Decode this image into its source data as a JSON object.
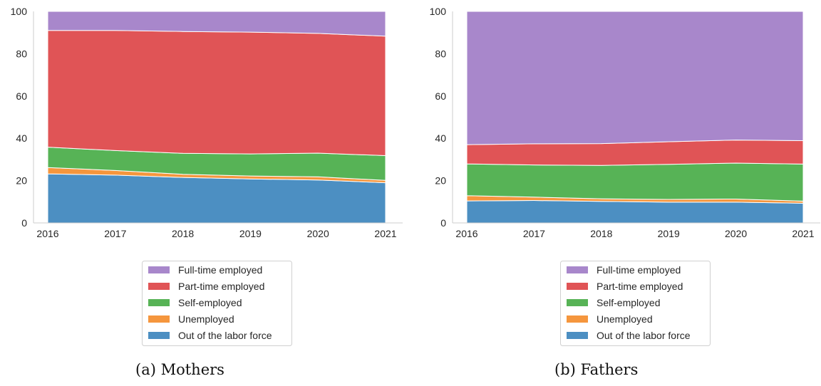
{
  "chart_data": [
    {
      "type": "area",
      "stacked": true,
      "caption": "(a) Mothers",
      "x": [
        2016,
        2017,
        2018,
        2019,
        2020,
        2021
      ],
      "ylim": [
        0,
        100
      ],
      "yticks": [
        0,
        20,
        40,
        60,
        80,
        100
      ],
      "grid": false,
      "legend_position": "below",
      "series": [
        {
          "name": "Out of the labor force",
          "color": "#4c8fc2",
          "values": [
            23.2,
            22.6,
            21.5,
            20.8,
            20.3,
            19.0
          ]
        },
        {
          "name": "Unemployed",
          "color": "#f5963d",
          "values": [
            3.0,
            2.2,
            1.5,
            1.4,
            1.5,
            1.1
          ]
        },
        {
          "name": "Self-employed",
          "color": "#57b356",
          "values": [
            9.6,
            9.4,
            9.9,
            10.4,
            11.2,
            11.7
          ]
        },
        {
          "name": "Part-time employed",
          "color": "#e05456",
          "values": [
            55.2,
            56.8,
            57.6,
            57.6,
            56.6,
            56.5
          ]
        },
        {
          "name": "Full-time employed",
          "color": "#a887cb",
          "values": [
            9.0,
            9.0,
            9.5,
            9.8,
            10.4,
            11.7
          ]
        }
      ]
    },
    {
      "type": "area",
      "stacked": true,
      "caption": "(b) Fathers",
      "x": [
        2016,
        2017,
        2018,
        2019,
        2020,
        2021
      ],
      "ylim": [
        0,
        100
      ],
      "yticks": [
        0,
        20,
        40,
        60,
        80,
        100
      ],
      "grid": false,
      "legend_position": "below",
      "series": [
        {
          "name": "Out of the labor force",
          "color": "#4c8fc2",
          "values": [
            10.4,
            10.6,
            10.2,
            9.8,
            9.8,
            9.3
          ]
        },
        {
          "name": "Unemployed",
          "color": "#f5963d",
          "values": [
            2.5,
            1.6,
            1.2,
            1.3,
            1.5,
            1.0
          ]
        },
        {
          "name": "Self-employed",
          "color": "#57b356",
          "values": [
            15.0,
            15.2,
            15.8,
            16.6,
            17.0,
            17.5
          ]
        },
        {
          "name": "Part-time employed",
          "color": "#e05456",
          "values": [
            9.1,
            10.0,
            10.3,
            10.7,
            10.9,
            11.1
          ]
        },
        {
          "name": "Full-time employed",
          "color": "#a887cb",
          "values": [
            63.0,
            62.6,
            62.5,
            61.6,
            60.8,
            61.1
          ]
        }
      ]
    }
  ],
  "legend_order": [
    "Full-time employed",
    "Part-time employed",
    "Self-employed",
    "Unemployed",
    "Out of the labor force"
  ]
}
